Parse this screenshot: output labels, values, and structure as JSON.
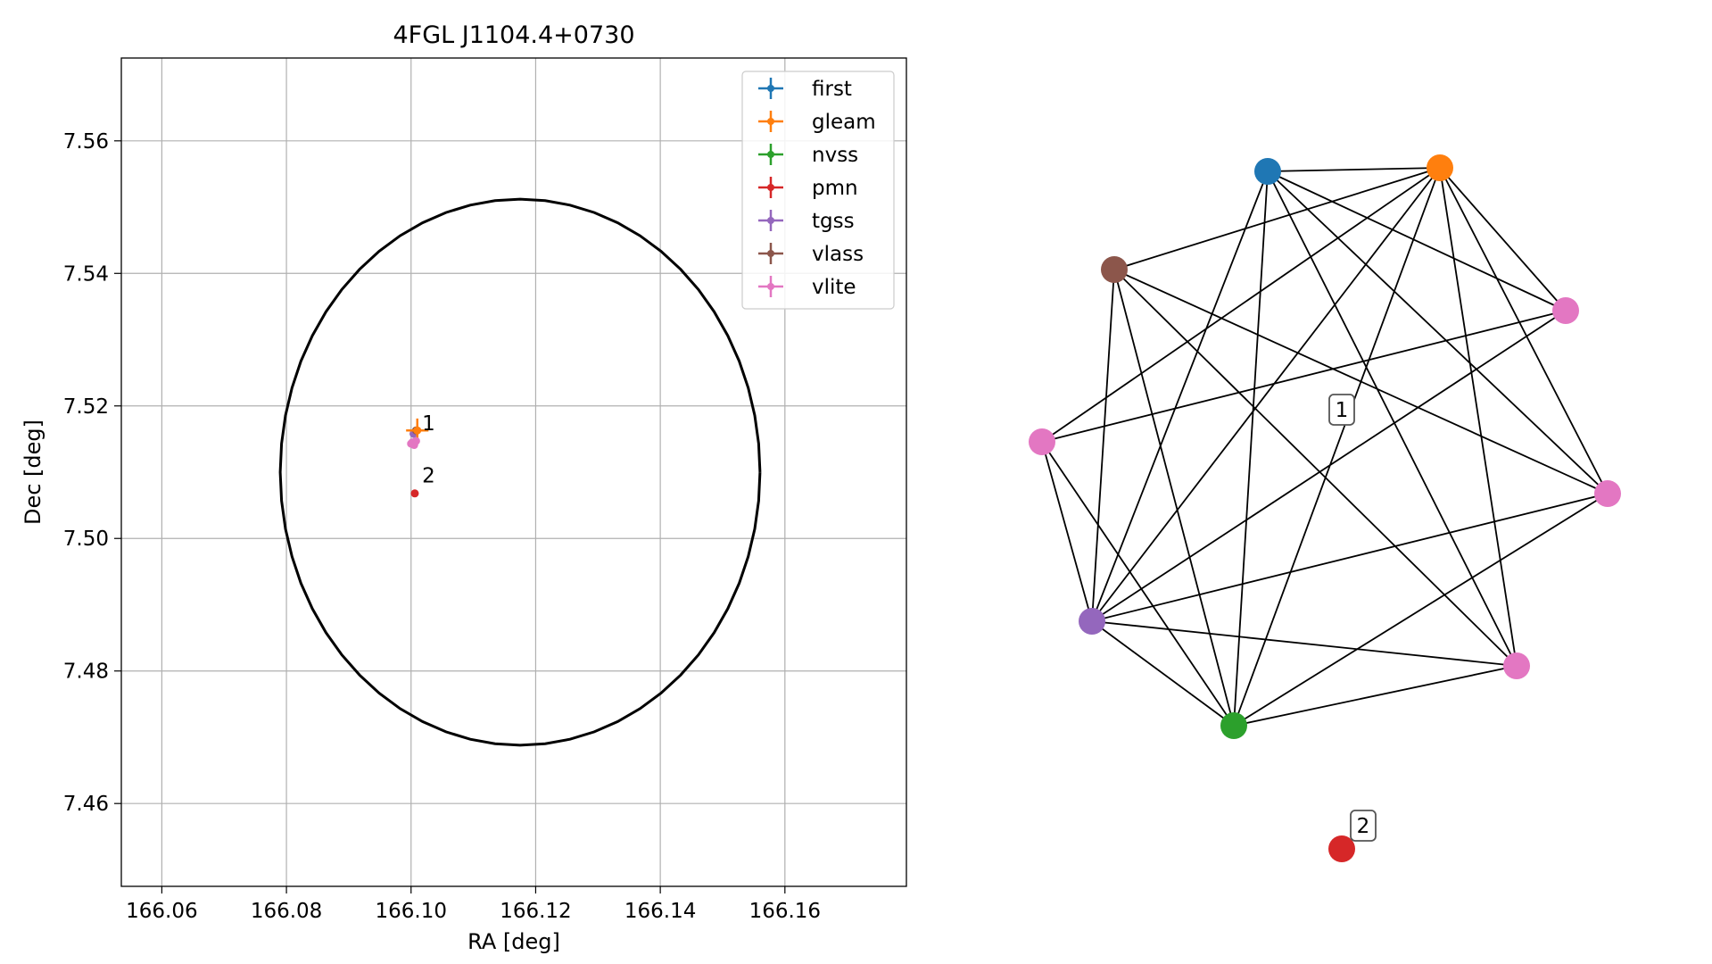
{
  "chart_data": [
    {
      "type": "scatter",
      "title": "4FGL J1104.4+0730",
      "xlabel": "RA [deg]",
      "ylabel": "Dec [deg]",
      "xlim": [
        166.0535,
        166.1795
      ],
      "ylim": [
        7.4475,
        7.5725
      ],
      "xticks": [
        166.06,
        166.08,
        166.1,
        166.12,
        166.14,
        166.16
      ],
      "xtick_labels": [
        "166.06",
        "166.08",
        "166.10",
        "166.12",
        "166.14",
        "166.16"
      ],
      "yticks": [
        7.46,
        7.48,
        7.5,
        7.52,
        7.54,
        7.56
      ],
      "ytick_labels": [
        "7.46",
        "7.48",
        "7.50",
        "7.52",
        "7.54",
        "7.56"
      ],
      "grid": true,
      "legend_position": "top-right",
      "legend": [
        {
          "name": "first",
          "color": "#1f77b4"
        },
        {
          "name": "gleam",
          "color": "#ff7f0e"
        },
        {
          "name": "nvss",
          "color": "#2ca02c"
        },
        {
          "name": "pmn",
          "color": "#d62728"
        },
        {
          "name": "tgss",
          "color": "#9467bd"
        },
        {
          "name": "vlass",
          "color": "#8c564b"
        },
        {
          "name": "vlite",
          "color": "#e377c2"
        }
      ],
      "ellipse": {
        "ra": 166.1175,
        "dec": 7.51,
        "semi_axis_ra": 0.0385,
        "semi_axis_dec": 0.0412,
        "color": "#000000"
      },
      "points": [
        {
          "catalog": "first",
          "ra": 166.1008,
          "dec": 7.5162,
          "ra_err": 0.0003,
          "dec_err": 0.0003,
          "color": "#1f77b4"
        },
        {
          "catalog": "nvss",
          "ra": 166.1006,
          "dec": 7.516,
          "ra_err": 0.0005,
          "dec_err": 0.0005,
          "color": "#2ca02c"
        },
        {
          "catalog": "tgss",
          "ra": 166.1004,
          "dec": 7.5158,
          "ra_err": 0.0006,
          "dec_err": 0.0006,
          "color": "#9467bd"
        },
        {
          "catalog": "vlass",
          "ra": 166.1008,
          "dec": 7.5163,
          "ra_err": 0.0002,
          "dec_err": 0.0002,
          "color": "#8c564b"
        },
        {
          "catalog": "gleam",
          "ra": 166.101,
          "dec": 7.5163,
          "ra_err": 0.0018,
          "dec_err": 0.0018,
          "color": "#ff7f0e"
        },
        {
          "catalog": "vlite",
          "ra": 166.1002,
          "dec": 7.5145,
          "ra_err": 0.0004,
          "dec_err": 0.0004,
          "color": "#e377c2"
        },
        {
          "catalog": "vlite",
          "ra": 166.1008,
          "dec": 7.5147,
          "ra_err": 0.0004,
          "dec_err": 0.0004,
          "color": "#e377c2"
        },
        {
          "catalog": "vlite",
          "ra": 166.1,
          "dec": 7.5143,
          "ra_err": 0.0003,
          "dec_err": 0.0003,
          "color": "#e377c2"
        },
        {
          "catalog": "vlite",
          "ra": 166.1005,
          "dec": 7.5141,
          "ra_err": 0.0003,
          "dec_err": 0.0003,
          "color": "#e377c2"
        },
        {
          "catalog": "pmn",
          "ra": 166.1006,
          "dec": 7.5068,
          "ra_err": 0.0004,
          "dec_err": 0.0004,
          "color": "#d62728"
        }
      ],
      "annotations": [
        {
          "text": "1",
          "ra": 166.1012,
          "dec": 7.5169
        },
        {
          "text": "2",
          "ra": 166.1012,
          "dec": 7.509
        }
      ]
    },
    {
      "type": "network",
      "nodes": [
        {
          "id": "n_first",
          "catalog": "first",
          "color": "#1f77b4"
        },
        {
          "id": "n_gleam",
          "catalog": "gleam",
          "color": "#ff7f0e"
        },
        {
          "id": "n_vlite1",
          "catalog": "vlite",
          "color": "#e377c2"
        },
        {
          "id": "n_vlite2",
          "catalog": "vlite",
          "color": "#e377c2"
        },
        {
          "id": "n_vlite3",
          "catalog": "vlite",
          "color": "#e377c2"
        },
        {
          "id": "n_nvss",
          "catalog": "nvss",
          "color": "#2ca02c"
        },
        {
          "id": "n_tgss",
          "catalog": "tgss",
          "color": "#9467bd"
        },
        {
          "id": "n_vlite4",
          "catalog": "vlite",
          "color": "#e377c2"
        },
        {
          "id": "n_vlass",
          "catalog": "vlass",
          "color": "#8c564b"
        },
        {
          "id": "n_pmn",
          "catalog": "pmn",
          "color": "#d62728"
        }
      ],
      "edges": [
        [
          "n_first",
          "n_gleam"
        ],
        [
          "n_first",
          "n_vlite1"
        ],
        [
          "n_first",
          "n_vlite2"
        ],
        [
          "n_first",
          "n_vlite3"
        ],
        [
          "n_first",
          "n_nvss"
        ],
        [
          "n_first",
          "n_tgss"
        ],
        [
          "n_gleam",
          "n_vlass"
        ],
        [
          "n_gleam",
          "n_vlite4"
        ],
        [
          "n_gleam",
          "n_tgss"
        ],
        [
          "n_gleam",
          "n_nvss"
        ],
        [
          "n_gleam",
          "n_vlite3"
        ],
        [
          "n_gleam",
          "n_vlite1"
        ],
        [
          "n_gleam",
          "n_vlite2"
        ],
        [
          "n_vlass",
          "n_vlite2"
        ],
        [
          "n_vlass",
          "n_vlite3"
        ],
        [
          "n_vlass",
          "n_tgss"
        ],
        [
          "n_vlass",
          "n_nvss"
        ],
        [
          "n_vlite1",
          "n_vlite4"
        ],
        [
          "n_vlite1",
          "n_tgss"
        ],
        [
          "n_vlite4",
          "n_tgss"
        ],
        [
          "n_vlite4",
          "n_nvss"
        ],
        [
          "n_tgss",
          "n_nvss"
        ],
        [
          "n_tgss",
          "n_vlite3"
        ],
        [
          "n_tgss",
          "n_vlite2"
        ],
        [
          "n_nvss",
          "n_vlite3"
        ],
        [
          "n_nvss",
          "n_vlite2"
        ]
      ],
      "groups": [
        {
          "label": "1"
        },
        {
          "label": "2"
        }
      ]
    }
  ]
}
